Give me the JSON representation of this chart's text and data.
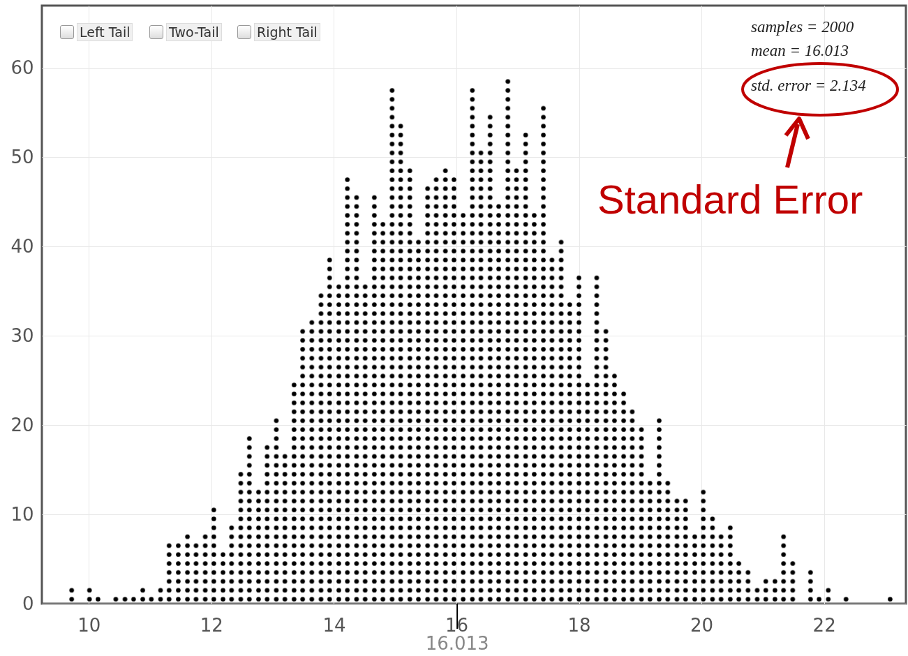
{
  "chart_data": {
    "type": "bar",
    "color": "#000000",
    "x": [
      9.72,
      10.01,
      10.15,
      10.44,
      10.59,
      10.73,
      10.88,
      11.02,
      11.17,
      11.31,
      11.46,
      11.61,
      11.75,
      11.9,
      12.04,
      12.19,
      12.33,
      12.48,
      12.62,
      12.77,
      12.91,
      13.06,
      13.2,
      13.35,
      13.49,
      13.64,
      13.79,
      13.93,
      14.08,
      14.22,
      14.37,
      14.51,
      14.66,
      14.8,
      14.95,
      15.09,
      15.24,
      15.38,
      15.53,
      15.67,
      15.82,
      15.96,
      16.11,
      16.26,
      16.4,
      16.55,
      16.69,
      16.84,
      16.98,
      17.13,
      17.27,
      17.42,
      17.56,
      17.71,
      17.85,
      18.0,
      18.14,
      18.29,
      18.44,
      18.58,
      18.73,
      18.87,
      19.02,
      19.16,
      19.31,
      19.45,
      19.6,
      19.74,
      19.89,
      20.03,
      20.18,
      20.32,
      20.47,
      20.61,
      20.76,
      20.91,
      21.05,
      21.2,
      21.34,
      21.49,
      21.78,
      21.92,
      22.07,
      22.36,
      23.08
    ],
    "values": [
      2,
      2,
      1,
      1,
      1,
      1,
      2,
      1,
      2,
      7,
      7,
      8,
      7,
      8,
      11,
      6,
      9,
      15,
      19,
      13,
      18,
      21,
      17,
      25,
      31,
      32,
      35,
      39,
      36,
      48,
      46,
      36,
      46,
      43,
      58,
      54,
      49,
      41,
      47,
      48,
      49,
      48,
      44,
      58,
      51,
      55,
      45,
      59,
      49,
      53,
      44,
      56,
      39,
      41,
      34,
      37,
      25,
      37,
      31,
      26,
      24,
      22,
      20,
      14,
      21,
      14,
      12,
      12,
      8,
      13,
      10,
      8,
      9,
      5,
      4,
      2,
      3,
      3,
      8,
      5,
      4,
      1,
      2,
      1,
      1
    ],
    "xlim": [
      9.29,
      23.28
    ],
    "ylim": [
      0,
      67
    ],
    "xticks": [
      10,
      12,
      14,
      16,
      18,
      20,
      22
    ],
    "yticks": [
      0,
      10,
      20,
      30,
      40,
      50,
      60
    ],
    "grid": true,
    "ref_lines": [
      {
        "axis": "x",
        "value": 16.013,
        "label": "16.013",
        "color": "#000000"
      }
    ],
    "annotations": [
      "Left Tail",
      "Two-Tail",
      "Right Tail",
      "samples = 2000",
      "mean = 16.013",
      "std. error = 2.134",
      "Standard Error"
    ]
  }
}
